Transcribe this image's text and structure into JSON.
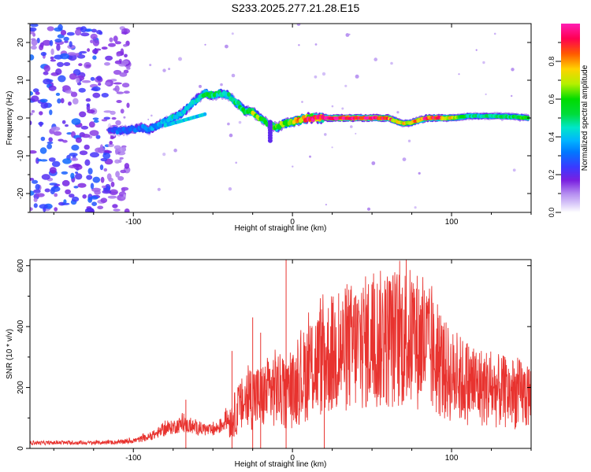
{
  "figure": {
    "title": "S233.2025.277.21.28.E15"
  },
  "chart_data": [
    {
      "type": "heatmap",
      "xlabel": "Height of straight line (km)",
      "ylabel": "Frequency (Hz)",
      "xlim": [
        -165,
        150
      ],
      "ylim": [
        -25,
        25
      ],
      "x_ticks": [
        -100,
        0,
        100
      ],
      "y_ticks": [
        -20,
        -10,
        0,
        10,
        20
      ],
      "grid": false,
      "colorbar": {
        "label": "Normalized spectral amplitude",
        "range": [
          0,
          1
        ],
        "ticks": [
          0.0,
          0.2,
          0.4,
          0.6,
          0.8
        ],
        "colors": [
          "#ffffff",
          "#b48cf0",
          "#7a1fe0",
          "#3a3aff",
          "#00b4ff",
          "#00e6c8",
          "#00dc00",
          "#b4f000",
          "#ffd200",
          "#ff5a00",
          "#ff0050",
          "#ff1eb4"
        ]
      },
      "ridge": {
        "x": [
          -115,
          -110,
          -100,
          -95,
          -90,
          -85,
          -80,
          -75,
          -70,
          -65,
          -60,
          -55,
          -50,
          -45,
          -40,
          -35,
          -30,
          -25,
          -20,
          -15,
          -10,
          -5,
          0,
          5,
          10,
          20,
          40,
          60,
          65,
          70,
          75,
          80,
          85,
          90,
          100,
          110,
          120,
          130,
          140,
          148
        ],
        "y": [
          -3,
          -3.5,
          -3,
          -2.5,
          -3,
          -2,
          -1,
          0,
          1,
          3,
          5,
          6.5,
          6,
          6.5,
          6,
          4,
          2,
          1.5,
          0,
          -1.5,
          -2.5,
          -1.5,
          -1,
          -0.5,
          0,
          0,
          0,
          0,
          -0.8,
          -1.5,
          -1.2,
          -0.5,
          0,
          0,
          0,
          0.5,
          0.5,
          0.5,
          0.3,
          0
        ],
        "amplitude": [
          0.25,
          0.3,
          0.3,
          0.3,
          0.35,
          0.35,
          0.4,
          0.45,
          0.4,
          0.4,
          0.45,
          0.5,
          0.5,
          0.45,
          0.45,
          0.5,
          0.55,
          0.65,
          0.6,
          0.55,
          0.6,
          0.65,
          0.7,
          0.8,
          0.9,
          0.95,
          0.97,
          0.92,
          0.7,
          0.7,
          0.75,
          0.85,
          0.9,
          0.92,
          0.7,
          0.5,
          0.45,
          0.5,
          0.55,
          0.55
        ]
      },
      "noise_region": {
        "x": [
          -165,
          -115
        ],
        "amplitude": [
          0.1,
          0.3
        ]
      }
    },
    {
      "type": "line",
      "xlabel": "Height of straight line (km)",
      "ylabel": "SNR (10 * v/v)",
      "xlim": [
        -165,
        150
      ],
      "ylim": [
        0,
        620
      ],
      "x_ticks": [
        -100,
        0,
        100
      ],
      "y_ticks": [
        0,
        200,
        400,
        600
      ],
      "grid": false,
      "series": [
        {
          "color": "#e8332f",
          "envelope_x": [
            -165,
            -130,
            -110,
            -100,
            -90,
            -80,
            -70,
            -60,
            -50,
            -45,
            -40,
            -35,
            -30,
            -25,
            -20,
            -15,
            -10,
            -5,
            0,
            5,
            10,
            15,
            20,
            30,
            40,
            50,
            60,
            70,
            75,
            80,
            85,
            90,
            95,
            100,
            110,
            120,
            130,
            140,
            150
          ],
          "envelope_y": [
            22,
            22,
            24,
            30,
            45,
            75,
            95,
            80,
            70,
            90,
            120,
            170,
            210,
            240,
            230,
            260,
            280,
            240,
            260,
            310,
            360,
            390,
            410,
            440,
            470,
            490,
            500,
            510,
            500,
            490,
            460,
            400,
            360,
            330,
            300,
            280,
            260,
            250,
            240
          ],
          "spikes": [
            {
              "x": -67,
              "y": 160
            },
            {
              "x": -38,
              "y": 320
            },
            {
              "x": -25,
              "y": 430
            },
            {
              "x": -20,
              "y": 380
            },
            {
              "x": -4,
              "y": 620
            },
            {
              "x": 20,
              "y": 380
            }
          ]
        }
      ]
    }
  ]
}
